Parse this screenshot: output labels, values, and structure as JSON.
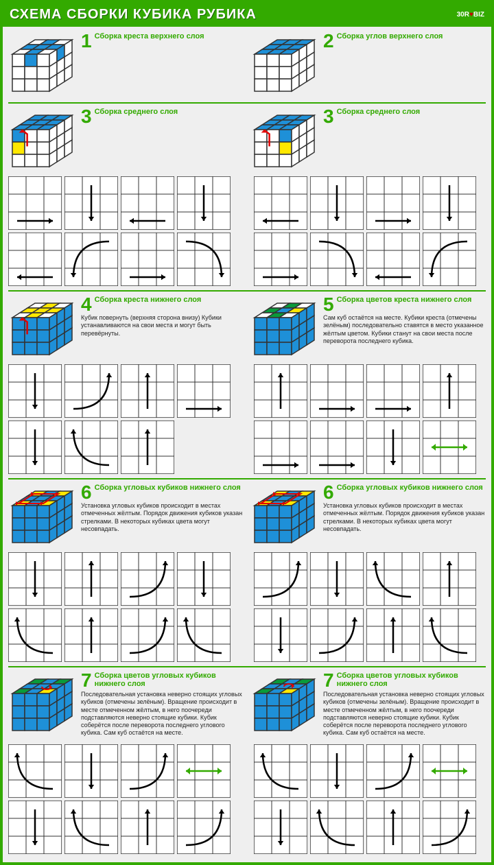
{
  "colors": {
    "green": "#33aa00",
    "blue": "#1e90d8",
    "white": "#ffffff",
    "yellow": "#ffe800",
    "darkgreen": "#0a9a3a",
    "gridline": "#333333",
    "bg": "#efefef",
    "arrow_black": "#000000",
    "arrow_red": "#e00000",
    "arrow_green": "#33aa00"
  },
  "header": {
    "title": "СХЕМА СБОРКИ КУБИКА РУБИКА",
    "brand_pre": "30R",
    "brand_post": "BIZ"
  },
  "steps": {
    "s1": {
      "num": "1",
      "title": "Сборка креста верхнего слоя",
      "desc": ""
    },
    "s2": {
      "num": "2",
      "title": "Сборка углов верхнего слоя",
      "desc": ""
    },
    "s3a": {
      "num": "3",
      "title": "Сборка среднего слоя",
      "desc": ""
    },
    "s3b": {
      "num": "3",
      "title": "Сборка среднего слоя",
      "desc": ""
    },
    "s4": {
      "num": "4",
      "title": "Сборка креста нижнего слоя",
      "desc": "Кубик повернуть (верхняя сторона внизу) Кубики устанавливаются на свои места и могут быть перевёрнуты."
    },
    "s5": {
      "num": "5",
      "title": "Сборка цветов креста нижнего слоя",
      "desc": "Сам куб остаётся на месте. Кубики креста (отмечены зелёным) последовательно ставятся в место указанное жёлтым цветом. Кубики станут на свои места после переворота последнего кубика."
    },
    "s6a": {
      "num": "6",
      "title": "Сборка угловых кубиков нижнего слоя",
      "desc": "Установка угловых кубиков происходит в местах отмеченных жёлтым. Порядок движения кубиков указан стрелками. В некоторых кубиках цвета могут несовпадать."
    },
    "s6b": {
      "num": "6",
      "title": "Сборка угловых кубиков нижнего слоя",
      "desc": "Установка угловых кубиков происходит в местах отмеченных жёлтым. Порядок движения кубиков указан стрелками. В некоторых кубиках цвета могут несовпадать."
    },
    "s7a": {
      "num": "7",
      "title": "Сборка цветов угловых кубиков нижнего слоя",
      "desc": "Последовательная установка неверно стоящих угловых кубиков (отмечены зелёным). Вращение происходит в месте отмеченном жёлтым, в него поочереди подставляются неверно стоящие кубики. Кубик соберётся после переворота последнего углового кубика. Сам куб остаётся на месте."
    },
    "s7b": {
      "num": "7",
      "title": "Сборка цветов угловых кубиков нижнего слоя",
      "desc": "Последовательная установка неверно стоящих угловых кубиков (отмечены зелёным). Вращение происходит в месте отмеченном жёлтым, в него поочереди подставляются неверно стоящие кубики. Кубик соберётся после переворота последнего углового кубика. Сам куб остаётся на месте."
    }
  },
  "cubes": {
    "c1": {
      "top": [
        [
          "w",
          "b",
          "w"
        ],
        [
          "b",
          "b",
          "b"
        ],
        [
          "w",
          "b",
          "w"
        ]
      ],
      "front": [
        [
          "w",
          "b",
          "w"
        ],
        [
          "w",
          "w",
          "w"
        ],
        [
          "w",
          "w",
          "w"
        ]
      ],
      "right": [
        [
          "w",
          "b",
          "w"
        ],
        [
          "w",
          "w",
          "w"
        ],
        [
          "w",
          "w",
          "w"
        ]
      ],
      "arrows": []
    },
    "c2": {
      "top": [
        [
          "b",
          "b",
          "b"
        ],
        [
          "b",
          "b",
          "b"
        ],
        [
          "b",
          "b",
          "b"
        ]
      ],
      "front": [
        [
          "w",
          "w",
          "w"
        ],
        [
          "w",
          "w",
          "w"
        ],
        [
          "w",
          "w",
          "w"
        ]
      ],
      "right": [
        [
          "w",
          "w",
          "w"
        ],
        [
          "w",
          "w",
          "w"
        ],
        [
          "w",
          "w",
          "w"
        ]
      ],
      "arrows": []
    },
    "c3a": {
      "top": [
        [
          "b",
          "b",
          "b"
        ],
        [
          "b",
          "b",
          "b"
        ],
        [
          "b",
          "b",
          "b"
        ]
      ],
      "front": [
        [
          "b",
          "w",
          "w"
        ],
        [
          "y",
          "w",
          "w"
        ],
        [
          "w",
          "w",
          "w"
        ]
      ],
      "right": [
        [
          "w",
          "w",
          "w"
        ],
        [
          "w",
          "w",
          "w"
        ],
        [
          "w",
          "w",
          "w"
        ]
      ],
      "arrows": [
        {
          "type": "red",
          "from": "front-1-0",
          "to": "front-0-0",
          "curve": "up-left"
        }
      ]
    },
    "c3b": {
      "top": [
        [
          "b",
          "b",
          "b"
        ],
        [
          "b",
          "b",
          "b"
        ],
        [
          "b",
          "b",
          "b"
        ]
      ],
      "front": [
        [
          "w",
          "w",
          "b"
        ],
        [
          "w",
          "w",
          "y"
        ],
        [
          "w",
          "w",
          "w"
        ]
      ],
      "right": [
        [
          "w",
          "w",
          "w"
        ],
        [
          "w",
          "w",
          "w"
        ],
        [
          "w",
          "w",
          "w"
        ]
      ],
      "arrows": [
        {
          "type": "red",
          "from": "front-1-2",
          "to": "front-0-2",
          "curve": "up-right"
        }
      ]
    },
    "c4": {
      "top": [
        [
          "w",
          "y",
          "w"
        ],
        [
          "y",
          "y",
          "y"
        ],
        [
          "w",
          "y",
          "w"
        ]
      ],
      "front": [
        [
          "b",
          "b",
          "b"
        ],
        [
          "b",
          "b",
          "b"
        ],
        [
          "b",
          "b",
          "b"
        ]
      ],
      "right": [
        [
          "b",
          "b",
          "b"
        ],
        [
          "b",
          "b",
          "b"
        ],
        [
          "b",
          "b",
          "b"
        ]
      ],
      "arrows": [
        {
          "type": "red",
          "from": "top-0-1",
          "to": "front-0-1",
          "curve": "down"
        }
      ]
    },
    "c5": {
      "top": [
        [
          "w",
          "g",
          "w"
        ],
        [
          "g",
          "b",
          "y"
        ],
        [
          "w",
          "g",
          "w"
        ]
      ],
      "front": [
        [
          "b",
          "b",
          "b"
        ],
        [
          "b",
          "b",
          "b"
        ],
        [
          "b",
          "b",
          "b"
        ]
      ],
      "right": [
        [
          "b",
          "b",
          "b"
        ],
        [
          "b",
          "b",
          "b"
        ],
        [
          "b",
          "b",
          "b"
        ]
      ],
      "arrows": []
    },
    "c6a": {
      "top": [
        [
          "y",
          "b",
          "y"
        ],
        [
          "b",
          "b",
          "b"
        ],
        [
          "y",
          "b",
          "y"
        ]
      ],
      "front": [
        [
          "b",
          "b",
          "b"
        ],
        [
          "b",
          "b",
          "b"
        ],
        [
          "b",
          "b",
          "b"
        ]
      ],
      "right": [
        [
          "b",
          "b",
          "b"
        ],
        [
          "b",
          "b",
          "b"
        ],
        [
          "b",
          "b",
          "b"
        ]
      ],
      "arrows": [
        {
          "type": "red",
          "corner-cycle": "ccw"
        }
      ]
    },
    "c6b": {
      "top": [
        [
          "y",
          "b",
          "y"
        ],
        [
          "b",
          "b",
          "b"
        ],
        [
          "y",
          "b",
          "y"
        ]
      ],
      "front": [
        [
          "b",
          "b",
          "b"
        ],
        [
          "b",
          "b",
          "b"
        ],
        [
          "b",
          "b",
          "b"
        ]
      ],
      "right": [
        [
          "b",
          "b",
          "b"
        ],
        [
          "b",
          "b",
          "b"
        ],
        [
          "b",
          "b",
          "b"
        ]
      ],
      "arrows": [
        {
          "type": "red",
          "corner-cycle": "cw"
        }
      ]
    },
    "c7a": {
      "top": [
        [
          "g",
          "b",
          "g"
        ],
        [
          "b",
          "b",
          "b"
        ],
        [
          "g",
          "b",
          "y"
        ]
      ],
      "front": [
        [
          "b",
          "b",
          "b"
        ],
        [
          "b",
          "b",
          "b"
        ],
        [
          "b",
          "b",
          "b"
        ]
      ],
      "right": [
        [
          "b",
          "b",
          "b"
        ],
        [
          "b",
          "b",
          "b"
        ],
        [
          "b",
          "b",
          "b"
        ]
      ],
      "arrows": [
        {
          "type": "red",
          "rotate": "ccw",
          "at": "top-2-2"
        }
      ]
    },
    "c7b": {
      "top": [
        [
          "g",
          "b",
          "g"
        ],
        [
          "b",
          "b",
          "b"
        ],
        [
          "g",
          "b",
          "y"
        ]
      ],
      "front": [
        [
          "b",
          "b",
          "b"
        ],
        [
          "b",
          "b",
          "b"
        ],
        [
          "b",
          "b",
          "b"
        ]
      ],
      "right": [
        [
          "b",
          "b",
          "b"
        ],
        [
          "b",
          "b",
          "b"
        ],
        [
          "b",
          "b",
          "b"
        ]
      ],
      "arrows": [
        {
          "type": "red",
          "rotate": "cw",
          "at": "top-2-2"
        }
      ]
    }
  },
  "face_size": 78,
  "move_grids": {
    "m3a": [
      [
        "right",
        "down",
        "left",
        "down"
      ],
      [
        "left",
        "curve-dl",
        "right",
        "curve-dr"
      ]
    ],
    "m3b": [
      [
        "left",
        "down",
        "right",
        "down"
      ],
      [
        "right",
        "curve-dr",
        "left",
        "curve-dl"
      ]
    ],
    "m4": [
      [
        "down",
        "curve-ur",
        "up",
        "right"
      ],
      [
        "down",
        "curve-ul",
        "up",
        ""
      ]
    ],
    "m5": [
      [
        "up",
        "right",
        "right",
        "up"
      ],
      [
        "right",
        "right",
        "down",
        "dbl-green"
      ]
    ],
    "m6a": [
      [
        "down",
        "up",
        "curve-ur",
        "down"
      ],
      [
        "curve-ul",
        "up",
        "curve-ur",
        "curve-ul"
      ]
    ],
    "m6b": [
      [
        "curve-ur",
        "down",
        "curve-ul",
        "up"
      ],
      [
        "down",
        "curve-ur",
        "up",
        "curve-ul"
      ]
    ],
    "m7a": [
      [
        "curve-ul",
        "down",
        "curve-ur",
        "dbl-green"
      ],
      [
        "down",
        "curve-ul",
        "up",
        "curve-ur"
      ]
    ],
    "m7b": [
      [
        "curve-ul",
        "down",
        "curve-ur",
        "dbl-green"
      ],
      [
        "down",
        "curve-ul",
        "up",
        "curve-ur"
      ]
    ]
  }
}
